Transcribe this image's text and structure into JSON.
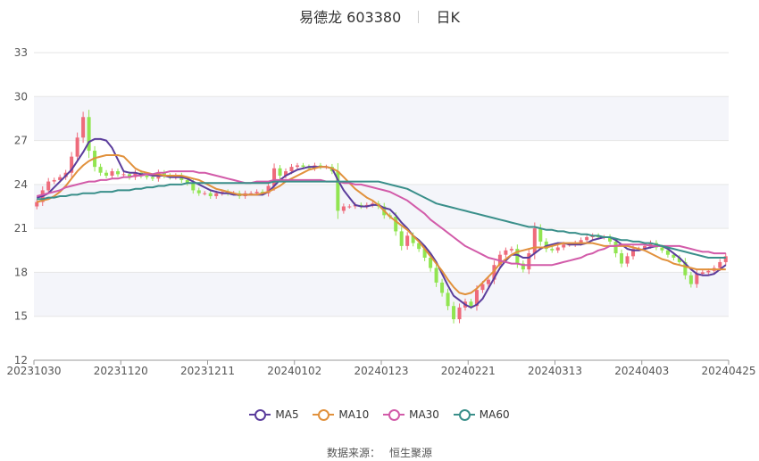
{
  "header": {
    "stock_name": "易德龙",
    "stock_code": "603380",
    "period": "日K"
  },
  "footer": {
    "source_label": "数据来源：",
    "source_name": "恒生聚源"
  },
  "colors": {
    "up": "#ee6b7b",
    "down": "#91e551",
    "MA5": "#5b3d9c",
    "MA10": "#e1913c",
    "MA30": "#d25ba9",
    "MA60": "#3a8f8a"
  },
  "chart_data": {
    "type": "candlestick",
    "ylim": [
      12,
      33
    ],
    "y_ticks": [
      12,
      15,
      18,
      21,
      24,
      27,
      30,
      33
    ],
    "x_tick_labels": [
      "20231030",
      "20231120",
      "20231211",
      "20240102",
      "20240123",
      "20240221",
      "20240313",
      "20240403",
      "20240425"
    ],
    "grid": true,
    "legend_position": "bottom",
    "candles": {
      "count": 120,
      "first_date": "20231030",
      "last_date": "20240425",
      "close": [
        22.8,
        23.6,
        24.2,
        24.3,
        24.5,
        24.8,
        25.9,
        27.2,
        28.6,
        26.3,
        25.2,
        24.8,
        24.6,
        24.9,
        24.7,
        24.7,
        24.5,
        24.8,
        24.6,
        24.5,
        24.4,
        24.8,
        24.6,
        24.5,
        24.6,
        24.3,
        24.1,
        23.6,
        23.4,
        23.4,
        23.2,
        23.4,
        23.5,
        23.4,
        23.4,
        23.2,
        23.4,
        23.4,
        23.5,
        23.4,
        23.9,
        25.1,
        24.6,
        24.9,
        25.2,
        25.3,
        25.2,
        25.1,
        25.3,
        25.2,
        25.2,
        24.9,
        22.2,
        22.5,
        22.5,
        22.6,
        22.5,
        22.6,
        22.7,
        22.5,
        21.9,
        21.8,
        20.8,
        19.8,
        20.5,
        20.0,
        19.6,
        19.0,
        18.3,
        17.3,
        16.6,
        15.7,
        14.8,
        15.6,
        16.0,
        15.7,
        16.8,
        17.2,
        17.5,
        18.5,
        19.2,
        19.5,
        19.6,
        18.6,
        18.2,
        19.3,
        21.0,
        20.1,
        19.6,
        19.5,
        19.7,
        19.9,
        19.9,
        20.0,
        20.2,
        20.4,
        20.5,
        20.4,
        20.4,
        20.1,
        19.3,
        18.6,
        19.1,
        19.6,
        19.6,
        19.8,
        20.0,
        19.7,
        19.5,
        19.2,
        19.0,
        18.7,
        17.8,
        17.2,
        17.9,
        18.0,
        18.1,
        18.3,
        18.7,
        19.1
      ]
    },
    "series": [
      {
        "name": "MA5",
        "values": [
          23.1,
          23.2,
          23.4,
          23.8,
          24.2,
          24.6,
          25.0,
          25.6,
          26.2,
          26.9,
          27.1,
          27.1,
          27.0,
          26.5,
          25.7,
          24.9,
          24.8,
          24.8,
          24.7,
          24.7,
          24.6,
          24.6,
          24.6,
          24.5,
          24.5,
          24.5,
          24.4,
          24.2,
          24.0,
          23.8,
          23.6,
          23.5,
          23.4,
          23.4,
          23.3,
          23.3,
          23.3,
          23.3,
          23.3,
          23.3,
          23.5,
          23.9,
          24.3,
          24.6,
          24.8,
          25.0,
          25.1,
          25.2,
          25.2,
          25.2,
          25.2,
          25.1,
          24.3,
          23.6,
          23.1,
          22.6,
          22.5,
          22.5,
          22.6,
          22.6,
          22.4,
          22.3,
          21.9,
          21.4,
          21.0,
          20.5,
          20.2,
          19.8,
          19.3,
          18.7,
          17.9,
          17.1,
          16.4,
          16.1,
          15.8,
          15.6,
          15.8,
          16.2,
          16.9,
          17.6,
          18.3,
          18.8,
          19.2,
          19.2,
          19.0,
          19.0,
          19.3,
          19.6,
          19.8,
          19.9,
          20.0,
          20.0,
          19.9,
          19.9,
          19.9,
          20.0,
          20.2,
          20.3,
          20.4,
          20.4,
          20.2,
          19.9,
          19.6,
          19.5,
          19.5,
          19.6,
          19.7,
          19.8,
          19.8,
          19.6,
          19.3,
          19.0,
          18.6,
          18.2,
          17.9,
          17.8,
          17.8,
          17.9,
          18.2,
          18.5
        ]
      },
      {
        "name": "MA10",
        "values": [
          22.8,
          22.9,
          23.0,
          23.2,
          23.5,
          23.9,
          24.4,
          24.9,
          25.3,
          25.6,
          25.8,
          25.9,
          26.0,
          26.0,
          26.0,
          25.9,
          25.5,
          25.1,
          24.9,
          24.8,
          24.7,
          24.7,
          24.6,
          24.6,
          24.6,
          24.6,
          24.5,
          24.4,
          24.3,
          24.1,
          23.9,
          23.7,
          23.6,
          23.5,
          23.4,
          23.3,
          23.3,
          23.3,
          23.3,
          23.4,
          23.5,
          23.7,
          23.9,
          24.2,
          24.4,
          24.6,
          24.8,
          25.0,
          25.1,
          25.2,
          25.2,
          25.1,
          24.9,
          24.5,
          24.1,
          23.7,
          23.4,
          23.1,
          22.9,
          22.6,
          22.2,
          21.8,
          21.5,
          21.2,
          20.9,
          20.5,
          20.1,
          19.6,
          19.1,
          18.6,
          18.1,
          17.5,
          17.0,
          16.6,
          16.5,
          16.6,
          16.9,
          17.3,
          17.7,
          18.1,
          18.6,
          18.9,
          19.2,
          19.4,
          19.5,
          19.6,
          19.7,
          19.7,
          19.7,
          19.8,
          19.9,
          20.0,
          20.0,
          20.0,
          20.0,
          20.0,
          20.0,
          19.9,
          19.8,
          19.8,
          19.8,
          19.8,
          19.8,
          19.7,
          19.6,
          19.5,
          19.3,
          19.1,
          18.9,
          18.8,
          18.6,
          18.5,
          18.4,
          18.3,
          18.2,
          18.2,
          18.2,
          18.2,
          18.2,
          18.2
        ]
      },
      {
        "name": "MA30",
        "values": [
          23.2,
          23.3,
          23.4,
          23.5,
          23.6,
          23.8,
          23.9,
          24.0,
          24.1,
          24.2,
          24.2,
          24.3,
          24.3,
          24.4,
          24.4,
          24.5,
          24.5,
          24.6,
          24.6,
          24.7,
          24.7,
          24.8,
          24.8,
          24.9,
          24.9,
          24.9,
          24.9,
          24.9,
          24.8,
          24.8,
          24.7,
          24.6,
          24.5,
          24.4,
          24.3,
          24.2,
          24.1,
          24.1,
          24.2,
          24.2,
          24.2,
          24.3,
          24.3,
          24.3,
          24.3,
          24.3,
          24.3,
          24.3,
          24.3,
          24.3,
          24.2,
          24.2,
          24.2,
          24.1,
          24.1,
          24.0,
          24.0,
          23.9,
          23.8,
          23.7,
          23.6,
          23.5,
          23.3,
          23.1,
          22.9,
          22.6,
          22.3,
          22.0,
          21.6,
          21.3,
          21.0,
          20.7,
          20.4,
          20.1,
          19.8,
          19.6,
          19.4,
          19.2,
          19.0,
          18.9,
          18.8,
          18.7,
          18.6,
          18.6,
          18.5,
          18.5,
          18.5,
          18.5,
          18.5,
          18.5,
          18.6,
          18.7,
          18.8,
          18.9,
          19.0,
          19.2,
          19.3,
          19.5,
          19.6,
          19.8,
          19.8,
          19.9,
          19.9,
          19.9,
          19.9,
          19.9,
          19.8,
          19.8,
          19.8,
          19.8,
          19.8,
          19.8,
          19.7,
          19.6,
          19.5,
          19.4,
          19.4,
          19.3,
          19.3,
          19.3
        ]
      },
      {
        "name": "MA60",
        "values": [
          23.0,
          23.0,
          23.1,
          23.1,
          23.2,
          23.2,
          23.3,
          23.3,
          23.4,
          23.4,
          23.4,
          23.5,
          23.5,
          23.5,
          23.6,
          23.6,
          23.6,
          23.7,
          23.7,
          23.8,
          23.8,
          23.9,
          23.9,
          24.0,
          24.0,
          24.0,
          24.1,
          24.1,
          24.1,
          24.1,
          24.1,
          24.1,
          24.1,
          24.1,
          24.1,
          24.1,
          24.1,
          24.1,
          24.1,
          24.1,
          24.1,
          24.2,
          24.2,
          24.2,
          24.2,
          24.2,
          24.2,
          24.2,
          24.2,
          24.2,
          24.2,
          24.2,
          24.2,
          24.2,
          24.2,
          24.2,
          24.2,
          24.2,
          24.2,
          24.2,
          24.1,
          24.0,
          23.9,
          23.8,
          23.7,
          23.5,
          23.3,
          23.1,
          22.9,
          22.7,
          22.6,
          22.5,
          22.4,
          22.3,
          22.2,
          22.1,
          22.0,
          21.9,
          21.8,
          21.7,
          21.6,
          21.5,
          21.4,
          21.3,
          21.2,
          21.1,
          21.1,
          21.0,
          20.9,
          20.9,
          20.8,
          20.8,
          20.7,
          20.7,
          20.6,
          20.6,
          20.5,
          20.5,
          20.4,
          20.4,
          20.3,
          20.2,
          20.2,
          20.1,
          20.1,
          20.0,
          20.0,
          19.9,
          19.8,
          19.7,
          19.6,
          19.5,
          19.4,
          19.3,
          19.2,
          19.1,
          19.0,
          19.0,
          19.0,
          19.0
        ]
      }
    ]
  }
}
